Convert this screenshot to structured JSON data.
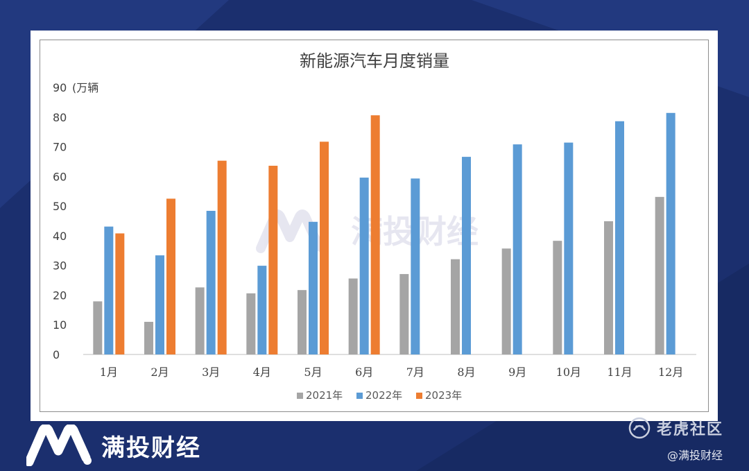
{
  "colors": {
    "background": "#1b2f6e",
    "series_2021": "#a5a5a5",
    "series_2022": "#5b9bd5",
    "series_2023": "#ed7d31"
  },
  "branding": {
    "brand_name": "满投财经",
    "watermark_text": "满投财经",
    "platform_name": "老虎社区",
    "handle": "@满投财经",
    "logo_icon": "m-logo-icon"
  },
  "chart_data": {
    "type": "bar",
    "title": "新能源汽车月度销量",
    "ylabel": "(万辆",
    "xlabel": "",
    "categories": [
      "1月",
      "2月",
      "3月",
      "4月",
      "5月",
      "6月",
      "7月",
      "8月",
      "9月",
      "10月",
      "11月",
      "12月"
    ],
    "series": [
      {
        "name": "2021年",
        "values": [
          17.9,
          11.0,
          22.6,
          20.6,
          21.7,
          25.6,
          27.1,
          32.1,
          35.7,
          38.3,
          44.9,
          53.1
        ]
      },
      {
        "name": "2022年",
        "values": [
          43.1,
          33.4,
          48.4,
          29.9,
          44.7,
          59.6,
          59.3,
          66.6,
          70.8,
          71.4,
          78.6,
          81.4
        ]
      },
      {
        "name": "2023年",
        "values": [
          40.8,
          52.5,
          65.3,
          63.6,
          71.7,
          80.6,
          null,
          null,
          null,
          null,
          null,
          null
        ]
      }
    ],
    "ylim": [
      0,
      90
    ],
    "yticks": [
      0,
      10,
      20,
      30,
      40,
      50,
      60,
      70,
      80,
      90
    ],
    "grid": false,
    "legend_position": "bottom"
  }
}
